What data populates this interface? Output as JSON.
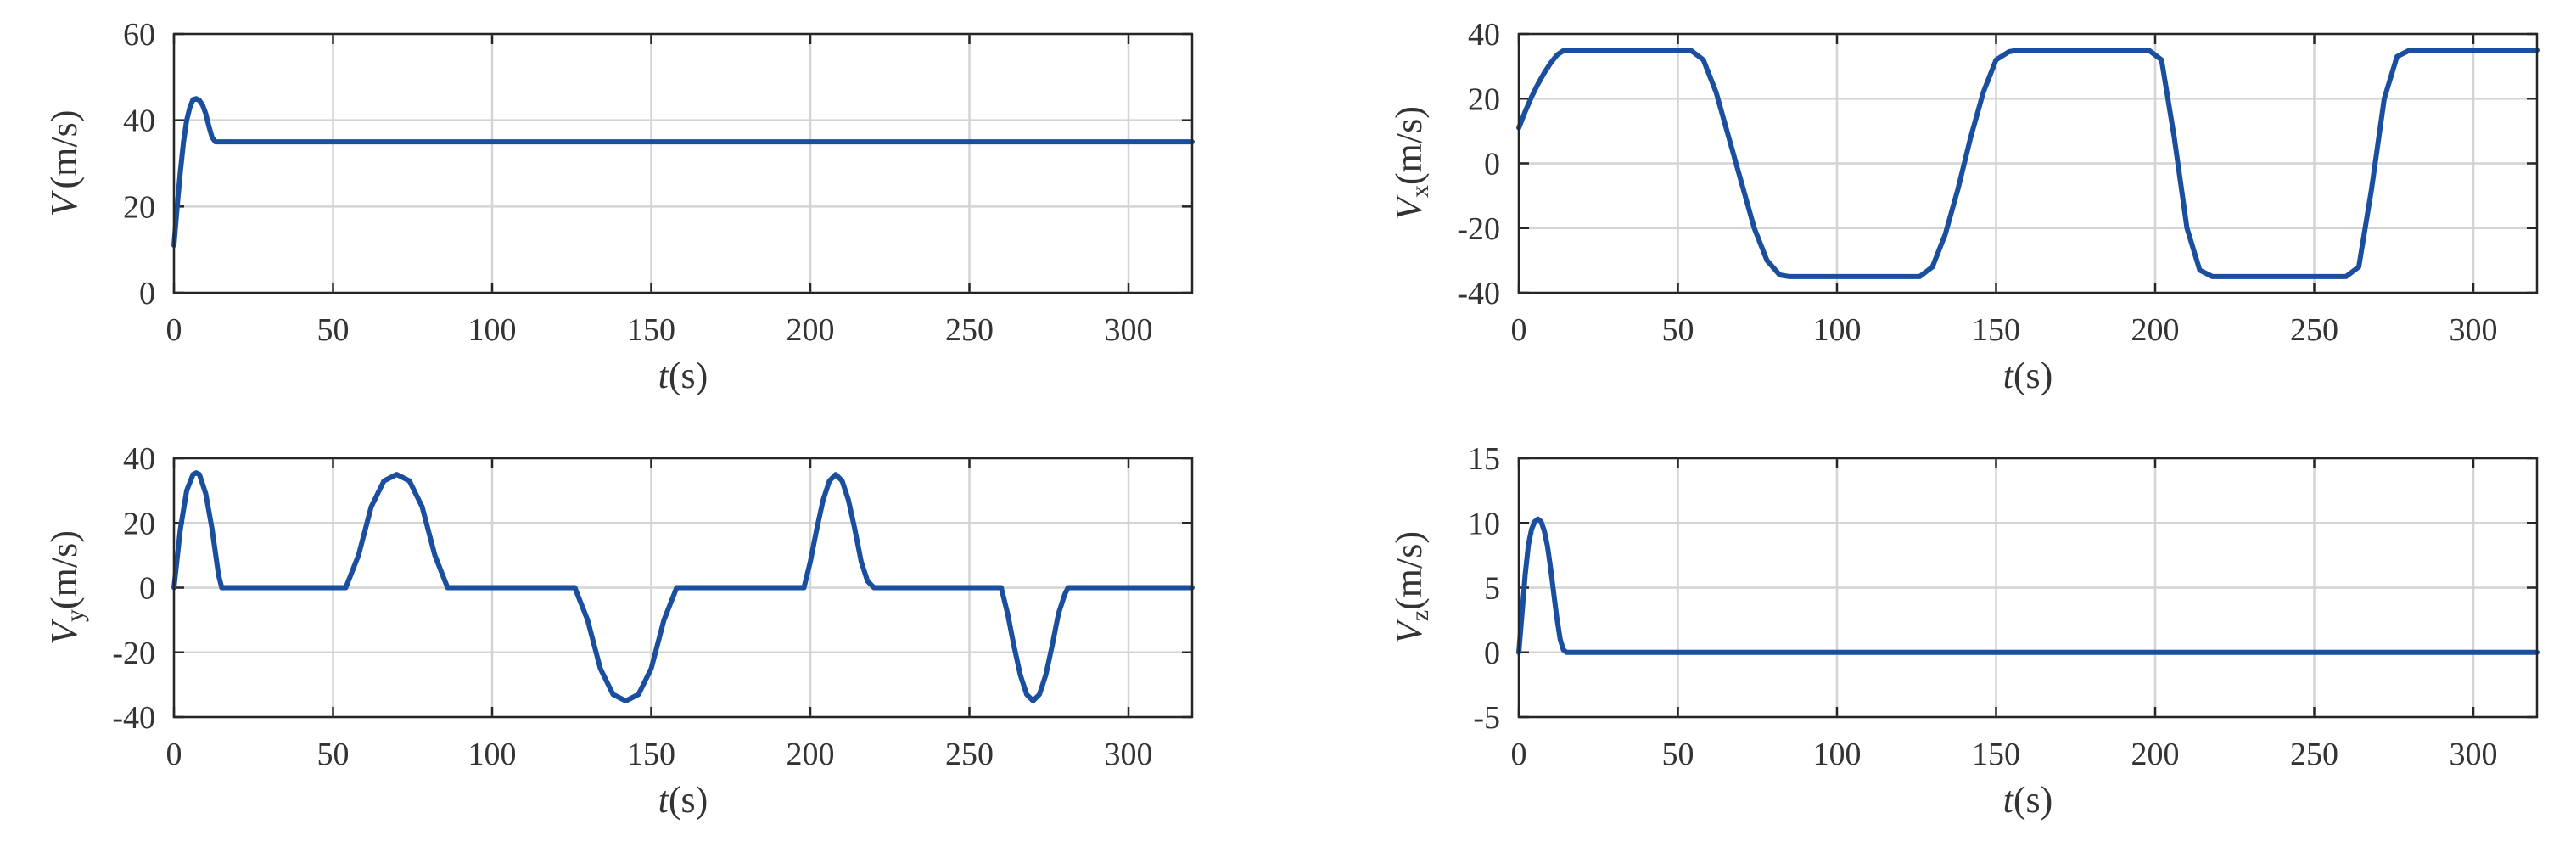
{
  "colors": {
    "series": "#1a4fa0"
  },
  "chart_data": [
    {
      "type": "line",
      "xlabel": {
        "var": "t",
        "unit": "(s)"
      },
      "ylabel": {
        "var": "V",
        "sub": "",
        "unit": "(m/s)"
      },
      "xlim": [
        0,
        320
      ],
      "ylim": [
        0,
        60
      ],
      "xticks": [
        "0",
        "50",
        "100",
        "150",
        "200",
        "250",
        "300"
      ],
      "yticks": [
        "0",
        "20",
        "40",
        "60"
      ],
      "grid": true,
      "series": [
        {
          "x": [
            0,
            1,
            2,
            3,
            4,
            5,
            6,
            7,
            8,
            9,
            10,
            11,
            12,
            13,
            14,
            15,
            20,
            50,
            100,
            150,
            200,
            250,
            300,
            320
          ],
          "y": [
            11,
            20,
            28,
            35,
            40,
            43,
            44.8,
            45,
            44.6,
            43.5,
            41.5,
            38.5,
            36,
            35,
            35,
            35,
            35,
            35,
            35,
            35,
            35,
            35,
            35,
            35
          ]
        }
      ]
    },
    {
      "type": "line",
      "xlabel": {
        "var": "t",
        "unit": "(s)"
      },
      "ylabel": {
        "var": "V",
        "sub": "x",
        "unit": "(m/s)"
      },
      "xlim": [
        0,
        320
      ],
      "ylim": [
        -40,
        40
      ],
      "xticks": [
        "0",
        "50",
        "100",
        "150",
        "200",
        "250",
        "300"
      ],
      "yticks": [
        "-40",
        "-20",
        "0",
        "20",
        "40"
      ],
      "grid": true,
      "series": [
        {
          "x": [
            0,
            2,
            4,
            6,
            8,
            10,
            12,
            14,
            15,
            54,
            58,
            62,
            66,
            70,
            74,
            78,
            82,
            85,
            126,
            130,
            134,
            138,
            142,
            146,
            150,
            154,
            157,
            198,
            202,
            206,
            210,
            214,
            218,
            219,
            260,
            264,
            268,
            272,
            276,
            280,
            281,
            320
          ],
          "y": [
            11,
            16,
            20.5,
            24.5,
            28,
            31,
            33.5,
            34.8,
            35,
            35,
            32,
            22,
            8,
            -6,
            -20,
            -30,
            -34.5,
            -35,
            -35,
            -32,
            -22,
            -8,
            8,
            22,
            32,
            34.5,
            35,
            35,
            32,
            8,
            -20,
            -33,
            -35,
            -35,
            -35,
            -32,
            -8,
            20,
            33,
            35,
            35,
            35
          ]
        }
      ]
    },
    {
      "type": "line",
      "xlabel": {
        "var": "t",
        "unit": "(s)"
      },
      "ylabel": {
        "var": "V",
        "sub": "y",
        "unit": "(m/s)"
      },
      "xlim": [
        0,
        320
      ],
      "ylim": [
        -40,
        40
      ],
      "xticks": [
        "0",
        "50",
        "100",
        "150",
        "200",
        "250",
        "300"
      ],
      "yticks": [
        "-40",
        "-20",
        "0",
        "20",
        "40"
      ],
      "grid": true,
      "series": [
        {
          "x": [
            0,
            2,
            4,
            6,
            7,
            8,
            10,
            12,
            14,
            15,
            54,
            58,
            62,
            66,
            70,
            74,
            78,
            82,
            86,
            126,
            130,
            134,
            138,
            142,
            146,
            150,
            154,
            158,
            198,
            200,
            202,
            204,
            206,
            208,
            210,
            212,
            214,
            216,
            218,
            220,
            260,
            262,
            264,
            266,
            268,
            270,
            272,
            274,
            276,
            278,
            280,
            281,
            320
          ],
          "y": [
            0,
            18,
            30,
            35,
            35.5,
            35,
            29,
            18,
            4,
            0,
            0,
            10,
            25,
            33,
            35,
            33,
            25,
            10,
            0,
            0,
            -10,
            -25,
            -33,
            -35,
            -33,
            -25,
            -10,
            0,
            0,
            8,
            18,
            27,
            33,
            35,
            33,
            27,
            18,
            8,
            2,
            0,
            0,
            -8,
            -18,
            -27,
            -33,
            -35,
            -33,
            -27,
            -18,
            -8,
            -2,
            0,
            0
          ]
        }
      ]
    },
    {
      "type": "line",
      "xlabel": {
        "var": "t",
        "unit": "(s)"
      },
      "ylabel": {
        "var": "V",
        "sub": "z",
        "unit": "(m/s)"
      },
      "xlim": [
        0,
        320
      ],
      "ylim": [
        -5,
        15
      ],
      "xticks": [
        "0",
        "50",
        "100",
        "150",
        "200",
        "250",
        "300"
      ],
      "yticks": [
        "-5",
        "0",
        "5",
        "10",
        "15"
      ],
      "grid": true,
      "series": [
        {
          "x": [
            0,
            1,
            2,
            3,
            4,
            5,
            6,
            7,
            8,
            9,
            10,
            11,
            12,
            13,
            14,
            15,
            20,
            50,
            100,
            150,
            200,
            250,
            300,
            320
          ],
          "y": [
            0,
            3,
            6,
            8.3,
            9.5,
            10.1,
            10.3,
            10.1,
            9.4,
            8.2,
            6.5,
            4.5,
            2.6,
            1,
            0.2,
            0,
            0,
            0,
            0,
            0,
            0,
            0,
            0,
            0
          ]
        }
      ]
    }
  ]
}
